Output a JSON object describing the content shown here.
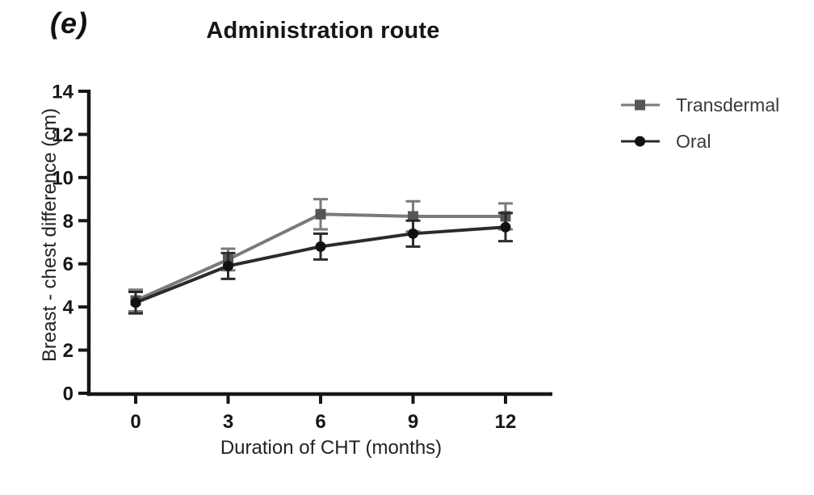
{
  "panel_label": "(e)",
  "chart_data": {
    "type": "line",
    "title": "Administration route",
    "xlabel": "Duration of CHT (months)",
    "ylabel": "Breast - chest difference (cm)",
    "x": [
      0,
      3,
      6,
      9,
      12
    ],
    "xtick_labels": [
      "0",
      "3",
      "6",
      "9",
      "12"
    ],
    "yticks": [
      0,
      2,
      4,
      6,
      8,
      10,
      12,
      14
    ],
    "ylim": [
      0,
      14
    ],
    "grid": false,
    "legend_position": "right",
    "error_bars": true,
    "series": [
      {
        "name": "Transdermal",
        "marker": "square",
        "line_color": "#7a7a7a",
        "marker_color": "#565656",
        "values": [
          4.3,
          6.2,
          8.3,
          8.2,
          8.2
        ],
        "errors": [
          0.5,
          0.5,
          0.7,
          0.7,
          0.6
        ]
      },
      {
        "name": "Oral",
        "marker": "circle",
        "line_color": "#2b2b2b",
        "marker_color": "#111111",
        "values": [
          4.2,
          5.9,
          6.8,
          7.4,
          7.7
        ],
        "errors": [
          0.5,
          0.6,
          0.6,
          0.6,
          0.65
        ]
      }
    ],
    "axis_color": "#161616"
  }
}
